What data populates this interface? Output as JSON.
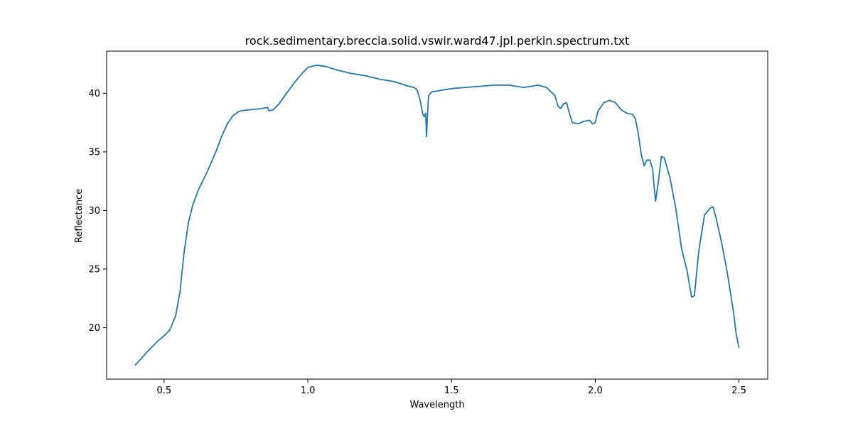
{
  "chart_data": {
    "type": "line",
    "title": "rock.sedimentary.breccia.solid.vswir.ward47.jpl.perkin.spectrum.txt",
    "xlabel": "Wavelength",
    "ylabel": "Reflectance",
    "xlim": [
      0.3,
      2.6
    ],
    "ylim": [
      15.6,
      43.6
    ],
    "xticks": [
      0.5,
      1.0,
      1.5,
      2.0,
      2.5
    ],
    "xtick_labels": [
      "0.5",
      "1.0",
      "1.5",
      "2.0",
      "2.5"
    ],
    "yticks": [
      20,
      25,
      30,
      35,
      40
    ],
    "ytick_labels": [
      "20",
      "25",
      "30",
      "35",
      "40"
    ],
    "grid": false,
    "line_color": "#1f77b4",
    "series": [
      {
        "x": [
          0.4,
          0.44,
          0.48,
          0.5,
          0.52,
          0.54,
          0.555,
          0.57,
          0.585,
          0.6,
          0.62,
          0.65,
          0.68,
          0.7,
          0.72,
          0.74,
          0.76,
          0.78,
          0.8,
          0.84,
          0.86,
          0.865,
          0.88,
          0.9,
          0.92,
          0.95,
          0.98,
          1.0,
          1.03,
          1.06,
          1.1,
          1.15,
          1.2,
          1.25,
          1.3,
          1.35,
          1.37,
          1.38,
          1.39,
          1.4,
          1.405,
          1.41,
          1.413,
          1.416,
          1.42,
          1.43,
          1.45,
          1.5,
          1.55,
          1.6,
          1.65,
          1.7,
          1.75,
          1.78,
          1.8,
          1.83,
          1.86,
          1.87,
          1.88,
          1.89,
          1.9,
          1.91,
          1.92,
          1.94,
          1.96,
          1.98,
          1.99,
          2.0,
          2.01,
          2.03,
          2.05,
          2.07,
          2.09,
          2.11,
          2.13,
          2.14,
          2.15,
          2.16,
          2.17,
          2.18,
          2.19,
          2.2,
          2.205,
          2.21,
          2.22,
          2.23,
          2.24,
          2.26,
          2.28,
          2.3,
          2.32,
          2.335,
          2.345,
          2.36,
          2.38,
          2.4,
          2.41,
          2.42,
          2.44,
          2.46,
          2.48,
          2.49,
          2.5
        ],
        "y": [
          16.8,
          17.9,
          18.9,
          19.3,
          19.8,
          21.0,
          23.0,
          26.5,
          29.0,
          30.5,
          31.8,
          33.3,
          35.0,
          36.3,
          37.4,
          38.1,
          38.45,
          38.55,
          38.6,
          38.7,
          38.8,
          38.5,
          38.6,
          39.1,
          39.8,
          40.8,
          41.7,
          42.2,
          42.4,
          42.3,
          42.0,
          41.7,
          41.5,
          41.2,
          41.0,
          40.6,
          40.5,
          40.3,
          39.5,
          38.2,
          38.0,
          38.3,
          36.3,
          38.0,
          39.8,
          40.1,
          40.2,
          40.4,
          40.5,
          40.6,
          40.7,
          40.7,
          40.5,
          40.6,
          40.7,
          40.5,
          39.8,
          38.9,
          38.7,
          39.1,
          39.2,
          38.3,
          37.5,
          37.4,
          37.6,
          37.7,
          37.4,
          37.5,
          38.5,
          39.2,
          39.4,
          39.2,
          38.6,
          38.3,
          38.2,
          37.8,
          36.5,
          34.8,
          33.8,
          34.3,
          34.3,
          33.5,
          32.0,
          30.8,
          32.5,
          34.6,
          34.5,
          32.8,
          30.2,
          26.8,
          24.8,
          22.6,
          22.7,
          26.5,
          29.6,
          30.2,
          30.3,
          29.4,
          27.2,
          24.6,
          21.5,
          19.5,
          18.3
        ]
      }
    ]
  }
}
